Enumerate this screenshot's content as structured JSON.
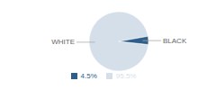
{
  "chart_data": {
    "type": "pie",
    "categories": [
      "WHITE",
      "BLACK"
    ],
    "values": [
      95.5,
      4.5
    ],
    "value_labels": [
      "95.5%",
      "4.5%"
    ],
    "colors": [
      "#d5dfe9",
      "#2e5f8a"
    ],
    "legend": "bottom"
  }
}
